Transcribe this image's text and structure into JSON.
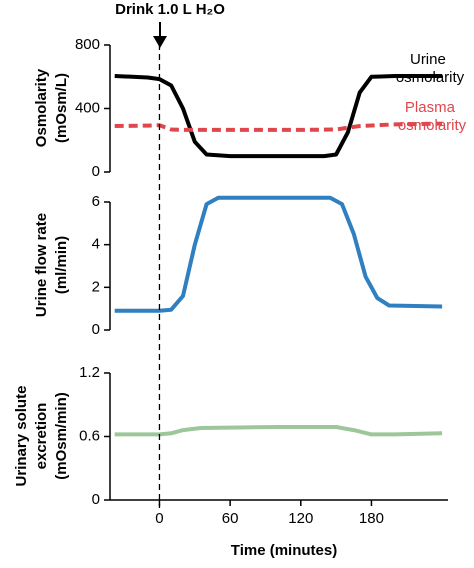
{
  "chart_data": [
    {
      "type": "line",
      "annotation": "Drink 1.0 L H₂O",
      "ylabel": [
        "Osmolarity",
        "(mOsm/L)"
      ],
      "xlim": [
        -42,
        245
      ],
      "ylim": [
        0,
        800
      ],
      "yticks": [
        0,
        400,
        800
      ],
      "series": [
        {
          "name": "Urine osmolarity",
          "color": "#000000",
          "dash": false,
          "x": [
            -38,
            -10,
            0,
            10,
            20,
            30,
            40,
            60,
            100,
            140,
            150,
            160,
            170,
            180,
            200,
            240
          ],
          "values": [
            605,
            595,
            585,
            545,
            400,
            190,
            110,
            100,
            100,
            100,
            110,
            250,
            500,
            600,
            605,
            605
          ]
        },
        {
          "name": "Plasma osmolarity",
          "color": "#e0474c",
          "dash": true,
          "x": [
            -38,
            -10,
            0,
            10,
            20,
            60,
            120,
            150,
            170,
            200,
            240
          ],
          "values": [
            290,
            292,
            295,
            268,
            265,
            265,
            265,
            268,
            290,
            300,
            305
          ]
        }
      ]
    },
    {
      "type": "line",
      "ylabel": [
        "Urine flow rate",
        "(ml/min)"
      ],
      "xlim": [
        -42,
        245
      ],
      "ylim": [
        0,
        6
      ],
      "yticks": [
        0,
        2,
        4,
        6
      ],
      "series": [
        {
          "name": "Urine flow rate",
          "color": "#2f7fc1",
          "dash": false,
          "x": [
            -38,
            0,
            10,
            20,
            30,
            40,
            50,
            100,
            145,
            155,
            165,
            175,
            185,
            195,
            240
          ],
          "values": [
            0.9,
            0.9,
            0.95,
            1.6,
            4.0,
            5.9,
            6.2,
            6.2,
            6.2,
            5.9,
            4.5,
            2.5,
            1.5,
            1.15,
            1.1
          ]
        }
      ]
    },
    {
      "type": "line",
      "ylabel": [
        "Urinary solute",
        "excretion",
        "(mOsm/min)"
      ],
      "xlabel": "Time (minutes)",
      "xlim": [
        -42,
        245
      ],
      "ylim": [
        0,
        1.2
      ],
      "yticks": [
        0,
        0.6,
        1.2
      ],
      "xticks": [
        0,
        60,
        120,
        180
      ],
      "series": [
        {
          "name": "Urinary solute excretion",
          "color": "#9dc79a",
          "dash": false,
          "x": [
            -38,
            0,
            10,
            20,
            35,
            100,
            150,
            165,
            180,
            200,
            240
          ],
          "values": [
            0.62,
            0.62,
            0.63,
            0.66,
            0.68,
            0.69,
            0.69,
            0.66,
            0.62,
            0.62,
            0.63
          ]
        }
      ]
    }
  ]
}
